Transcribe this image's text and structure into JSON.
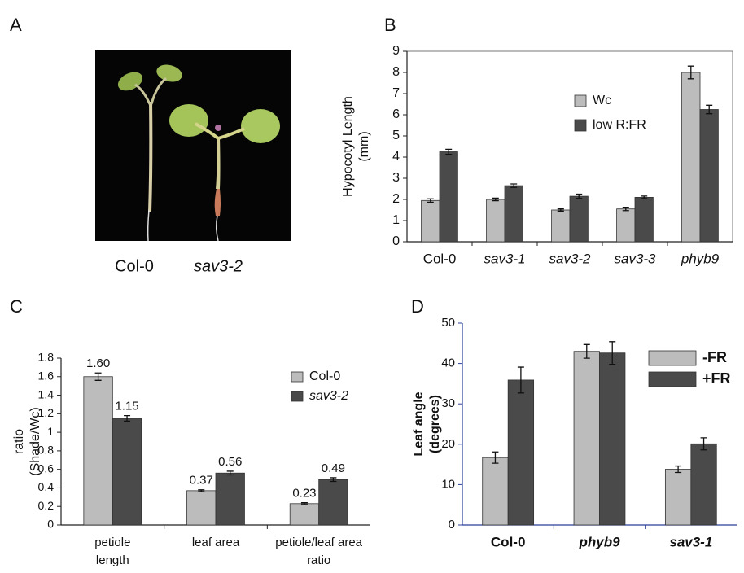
{
  "panel_labels": [
    "A",
    "B",
    "C",
    "D"
  ],
  "photo_captions": [
    {
      "text": "Col-0",
      "italic": false
    },
    {
      "text": "sav3-2",
      "italic": true
    }
  ],
  "chart_data": [
    {
      "type": "bar",
      "ylabel": [
        "Hypocotyl Length",
        "(mm)"
      ],
      "categories": [
        [
          "Col-0"
        ],
        [
          "sav3-1"
        ],
        [
          "sav3-2"
        ],
        [
          "sav3-3"
        ],
        [
          "phyb9"
        ]
      ],
      "category_italic": [
        false,
        true,
        true,
        true,
        true
      ],
      "series": [
        {
          "name": "Wc",
          "color": "#bcbcbc",
          "values": [
            1.95,
            2.0,
            1.5,
            1.55,
            8.0
          ],
          "errors": [
            0.08,
            0.06,
            0.05,
            0.08,
            0.3
          ]
        },
        {
          "name": "low R:FR",
          "color": "#4a4a4a",
          "values": [
            4.25,
            2.65,
            2.15,
            2.1,
            6.25
          ],
          "errors": [
            0.12,
            0.08,
            0.1,
            0.06,
            0.2
          ]
        }
      ],
      "ylim": [
        0,
        9
      ],
      "yticks": [
        0,
        1,
        2,
        3,
        4,
        5,
        6,
        7,
        8,
        9
      ],
      "legend": "upper-center"
    },
    {
      "type": "bar",
      "ylabel": [
        "ratio",
        "(Shade/Wc)"
      ],
      "categories": [
        [
          "petiole",
          "length"
        ],
        [
          "leaf area"
        ],
        [
          "petiole/leaf area",
          "ratio"
        ]
      ],
      "category_italic": [
        false,
        false,
        false
      ],
      "series": [
        {
          "name": "Col-0",
          "italic": false,
          "color": "#bcbcbc",
          "values": [
            1.6,
            0.37,
            0.23
          ],
          "value_labels": [
            "1.60",
            "0.37",
            "0.23"
          ],
          "errors": [
            0.04,
            0.01,
            0.01
          ]
        },
        {
          "name": "sav3-2",
          "italic": true,
          "color": "#4a4a4a",
          "values": [
            1.15,
            0.56,
            0.49
          ],
          "errors": [
            0.03,
            0.02,
            0.02
          ]
        }
      ],
      "ylim": [
        0,
        1.8
      ],
      "yticks": [
        0,
        0.2,
        0.4,
        0.6,
        0.8,
        1,
        1.2,
        1.4,
        1.6,
        1.8
      ],
      "legend": "upper-right"
    },
    {
      "type": "bar",
      "ylabel": [
        "Leaf angle",
        "(degrees)"
      ],
      "categories": [
        [
          "Col-0"
        ],
        [
          "phyb9"
        ],
        [
          "sav3-1"
        ]
      ],
      "category_italic": [
        false,
        true,
        true
      ],
      "series": [
        {
          "name": "-FR",
          "color": "#bcbcbc",
          "values": [
            16.7,
            43,
            13.8
          ],
          "errors": [
            1.4,
            1.7,
            0.8
          ]
        },
        {
          "name": "+FR",
          "color": "#4a4a4a",
          "values": [
            35.9,
            42.6,
            20.1
          ],
          "errors": [
            3.2,
            2.8,
            1.5
          ]
        }
      ],
      "ylim": [
        0,
        50
      ],
      "yticks": [
        0,
        10,
        20,
        30,
        40,
        50
      ],
      "legend": "upper-right"
    }
  ]
}
